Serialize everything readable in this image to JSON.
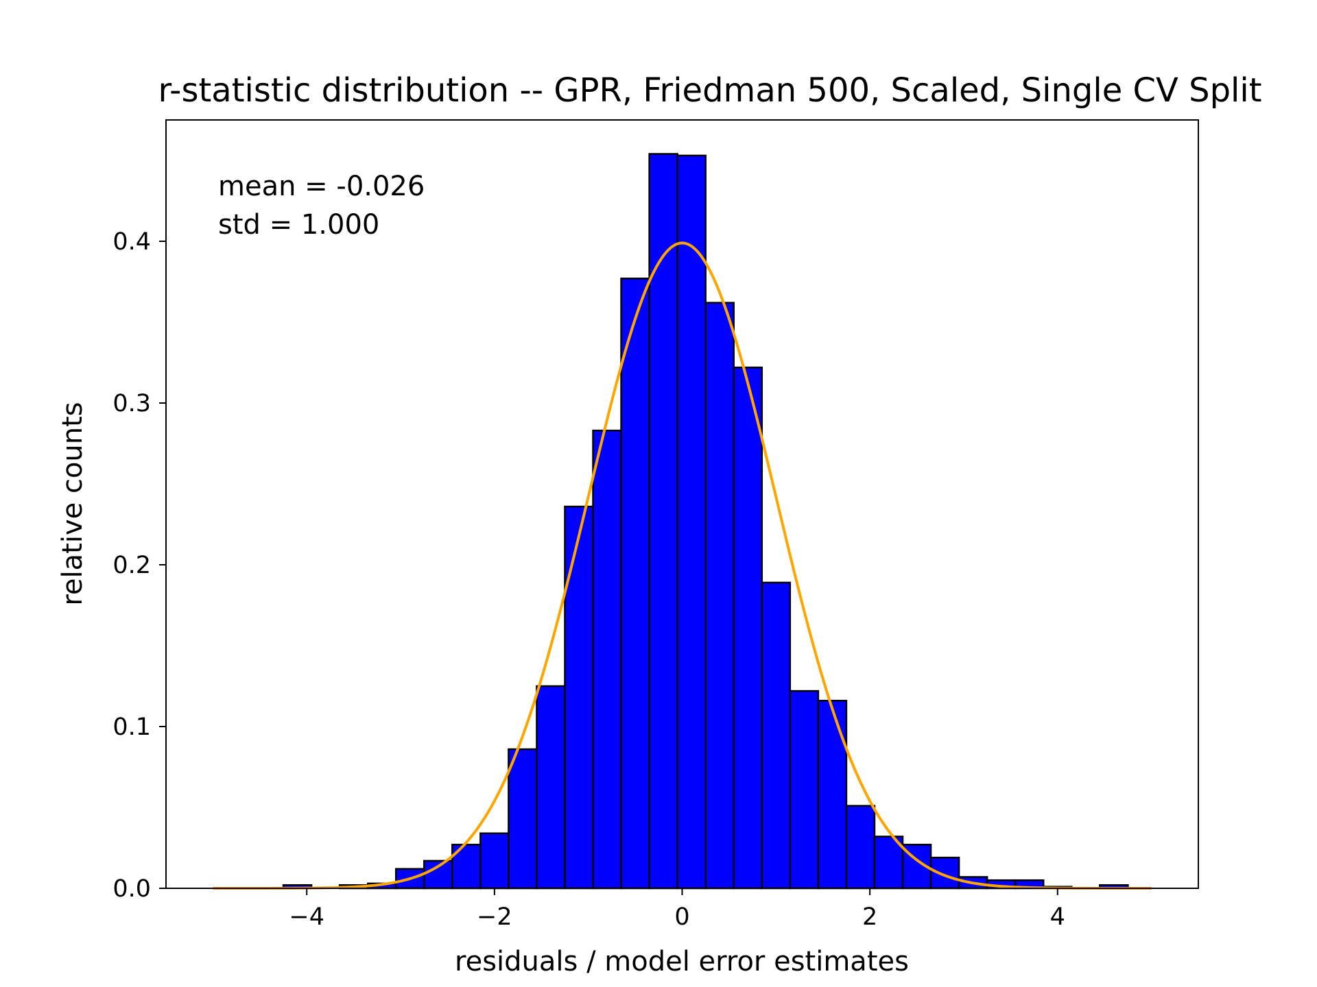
{
  "chart_data": {
    "type": "bar",
    "title": "r-statistic distribution -- GPR, Friedman 500, Scaled, Single CV Split",
    "xlabel": "residuals / model error estimates",
    "ylabel": "relative counts",
    "xlim": [
      -5.5,
      5.5
    ],
    "ylim": [
      0.0,
      0.475
    ],
    "xticks": [
      -4,
      -2,
      0,
      2,
      4
    ],
    "xtick_labels": [
      "−4",
      "−2",
      "0",
      "2",
      "4"
    ],
    "yticks": [
      0.0,
      0.1,
      0.2,
      0.3,
      0.4
    ],
    "ytick_labels": [
      "0.0",
      "0.1",
      "0.2",
      "0.3",
      "0.4"
    ],
    "grid": false,
    "bar_color": "#0000ff",
    "bar_edge_color": "#000000",
    "bin_edges": [
      -4.25,
      -3.95,
      -3.65,
      -3.35,
      -3.05,
      -2.75,
      -2.45,
      -2.15,
      -1.85,
      -1.55,
      -1.25,
      -0.95,
      -0.65,
      -0.35,
      -0.05,
      0.25,
      0.55,
      0.85,
      1.15,
      1.45,
      1.75,
      2.05,
      2.35,
      2.65,
      2.95,
      3.25,
      3.55,
      3.85,
      4.15,
      4.45,
      4.75
    ],
    "values": [
      0.002,
      0.0,
      0.002,
      0.003,
      0.012,
      0.017,
      0.027,
      0.034,
      0.086,
      0.125,
      0.236,
      0.283,
      0.377,
      0.454,
      0.453,
      0.362,
      0.322,
      0.189,
      0.122,
      0.116,
      0.051,
      0.032,
      0.027,
      0.019,
      0.007,
      0.005,
      0.005,
      0.001,
      0.0,
      0.002
    ],
    "series": [
      {
        "name": "",
        "type": "line",
        "color": "#ffa500",
        "function": "normal_pdf",
        "mean": 0,
        "std": 1,
        "x_range": [
          -5,
          5
        ]
      }
    ],
    "annotations": [
      "mean = -0.026",
      "std = 1.000"
    ]
  }
}
